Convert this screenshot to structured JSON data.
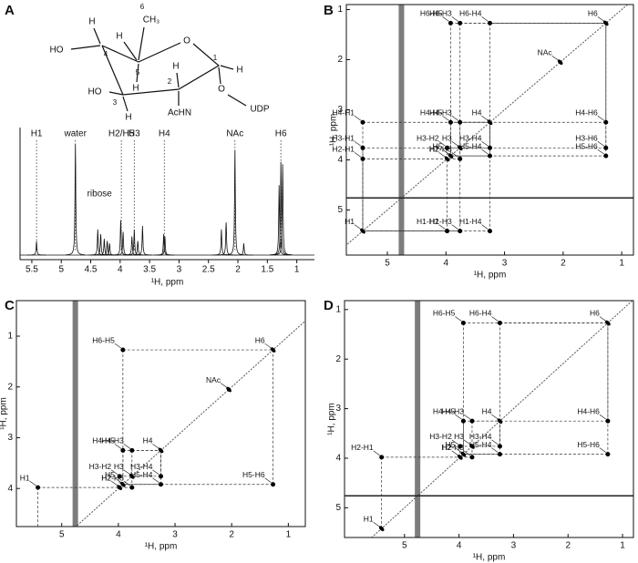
{
  "structure": {
    "atoms": [
      "H",
      "HO",
      "H",
      "HO",
      "H",
      "CH₃",
      "H",
      "AcHN",
      "H",
      "O",
      "O",
      "UDP",
      "H"
    ],
    "numbers": [
      "1",
      "2",
      "3",
      "4",
      "5",
      "6"
    ]
  },
  "chart_data": [
    {
      "type": "spectrum",
      "panel": "A",
      "xlabel": "¹H, ppm",
      "xlim": [
        5.7,
        0.7
      ],
      "xticks": [
        5.5,
        5,
        4.5,
        4,
        3.5,
        3,
        2.5,
        2,
        1.5,
        1
      ],
      "ylim": [
        0,
        100
      ],
      "x": [
        5.42,
        4.76,
        4.38,
        4.33,
        4.27,
        4.22,
        4.18,
        3.99,
        3.95,
        3.8,
        3.76,
        3.7,
        3.62,
        3.26,
        3.24,
        2.28,
        2.2,
        2.05,
        1.9,
        1.3,
        1.27,
        1.24
      ],
      "values": [
        12,
        95,
        22,
        18,
        14,
        12,
        10,
        30,
        20,
        16,
        22,
        12,
        25,
        18,
        16,
        22,
        28,
        90,
        10,
        60,
        80,
        78
      ],
      "annotations": [
        {
          "label": "H1",
          "x": 5.42,
          "dotted": true
        },
        {
          "label": "water",
          "x": 4.76,
          "dotted": true
        },
        {
          "label": "ribose",
          "x": 4.35,
          "dotted": false
        },
        {
          "label": "H2/H5",
          "x": 3.98,
          "dotted": true
        },
        {
          "label": "H3",
          "x": 3.76,
          "dotted": true
        },
        {
          "label": "H4",
          "x": 3.25,
          "dotted": true
        },
        {
          "label": "NAc",
          "x": 2.05,
          "dotted": true
        },
        {
          "label": "H6",
          "x": 1.27,
          "dotted": true
        }
      ]
    },
    {
      "type": "2d",
      "panel": "B",
      "xlabel": "¹H, ppm",
      "ylabel": "¹H, ppm",
      "xlim": [
        5.7,
        0.8
      ],
      "ylim": [
        0.9,
        5.9
      ],
      "xticks": [
        5,
        4,
        3,
        2,
        1
      ],
      "yticks": [
        1,
        2,
        3,
        4,
        5
      ],
      "water_ppm": 4.76,
      "peaks": [
        {
          "label": "H1",
          "x": 5.42,
          "y": 5.42
        },
        {
          "label": "H2",
          "x": 3.98,
          "y": 3.98
        },
        {
          "label": "H3",
          "x": 3.76,
          "y": 3.76
        },
        {
          "label": "H4",
          "x": 3.25,
          "y": 3.25
        },
        {
          "label": "H5",
          "x": 3.92,
          "y": 3.92
        },
        {
          "label": "H6",
          "x": 1.27,
          "y": 1.27
        },
        {
          "label": "NAc",
          "x": 2.05,
          "y": 2.05
        },
        {
          "label": "H6-H5",
          "x": 3.92,
          "y": 1.27
        },
        {
          "label": "H6-H3",
          "x": 3.76,
          "y": 1.27
        },
        {
          "label": "H6-H4",
          "x": 3.25,
          "y": 1.27
        },
        {
          "label": "H4-H1",
          "x": 5.42,
          "y": 3.25
        },
        {
          "label": "H3-H1",
          "x": 5.42,
          "y": 3.76
        },
        {
          "label": "H2-H1",
          "x": 5.42,
          "y": 3.98
        },
        {
          "label": "H4-H3",
          "x": 3.76,
          "y": 3.25
        },
        {
          "label": "H4-H5",
          "x": 3.92,
          "y": 3.25
        },
        {
          "label": "H3-H2",
          "x": 3.98,
          "y": 3.76
        },
        {
          "label": "H2-H3",
          "x": 3.76,
          "y": 3.98
        },
        {
          "label": "H5-H4",
          "x": 3.25,
          "y": 3.92
        },
        {
          "label": "H3-H4",
          "x": 3.25,
          "y": 3.76
        },
        {
          "label": "H4-H6",
          "x": 1.27,
          "y": 3.25
        },
        {
          "label": "H3-H6",
          "x": 1.27,
          "y": 3.76
        },
        {
          "label": "H5-H6",
          "x": 1.27,
          "y": 3.92
        },
        {
          "label": "H1-H2",
          "x": 3.98,
          "y": 5.42
        },
        {
          "label": "H1-H3",
          "x": 3.76,
          "y": 5.42
        },
        {
          "label": "H1-H4",
          "x": 3.25,
          "y": 5.42
        }
      ]
    },
    {
      "type": "2d",
      "panel": "C",
      "xlabel": "¹H, ppm",
      "ylabel": "¹H, ppm",
      "xlim": [
        5.8,
        0.7
      ],
      "ylim": [
        0.3,
        4.75
      ],
      "xticks": [
        5,
        4,
        3,
        2,
        1
      ],
      "yticks": [
        1,
        2,
        3,
        4
      ],
      "water_ppm": 4.76,
      "peaks": [
        {
          "label": "H6",
          "x": 1.27,
          "y": 1.27
        },
        {
          "label": "NAc",
          "x": 2.05,
          "y": 2.05
        },
        {
          "label": "H4",
          "x": 3.25,
          "y": 3.25
        },
        {
          "label": "H3",
          "x": 3.76,
          "y": 3.76
        },
        {
          "label": "H5",
          "x": 3.92,
          "y": 3.92
        },
        {
          "label": "H2",
          "x": 3.98,
          "y": 3.98
        },
        {
          "label": "H1",
          "x": 5.42,
          "y": 3.98
        },
        {
          "label": "H6-H5",
          "x": 3.92,
          "y": 1.27
        },
        {
          "label": "H4-H5",
          "x": 3.92,
          "y": 3.25
        },
        {
          "label": "H4-H3",
          "x": 3.76,
          "y": 3.25
        },
        {
          "label": "H3-H2",
          "x": 3.98,
          "y": 3.76
        },
        {
          "label": "H3-H4",
          "x": 3.25,
          "y": 3.76
        },
        {
          "label": "H2-H3",
          "x": 3.76,
          "y": 3.98
        },
        {
          "label": "H5-H4",
          "x": 3.25,
          "y": 3.92
        },
        {
          "label": "H5-H6",
          "x": 1.27,
          "y": 3.92
        }
      ]
    },
    {
      "type": "2d",
      "panel": "D",
      "xlabel": "¹H, ppm",
      "ylabel": "¹H, ppm",
      "xlim": [
        6.1,
        0.8
      ],
      "ylim": [
        0.82,
        5.6
      ],
      "xticks": [
        5,
        4,
        3,
        2,
        1
      ],
      "yticks": [
        1,
        2,
        3,
        4,
        5
      ],
      "water_ppm": 4.76,
      "peaks": [
        {
          "label": "H6",
          "x": 1.27,
          "y": 1.27
        },
        {
          "label": "H4",
          "x": 3.25,
          "y": 3.25
        },
        {
          "label": "H3",
          "x": 3.76,
          "y": 3.76
        },
        {
          "label": "H5",
          "x": 3.92,
          "y": 3.92
        },
        {
          "label": "H2",
          "x": 3.98,
          "y": 3.98
        },
        {
          "label": "H1",
          "x": 5.42,
          "y": 5.42
        },
        {
          "label": "H6-H5",
          "x": 3.92,
          "y": 1.27
        },
        {
          "label": "H6-H4",
          "x": 3.25,
          "y": 1.27
        },
        {
          "label": "H4-H6",
          "x": 1.27,
          "y": 3.25
        },
        {
          "label": "H4-H5",
          "x": 3.92,
          "y": 3.25
        },
        {
          "label": "H4-H3",
          "x": 3.76,
          "y": 3.25
        },
        {
          "label": "H3-H2",
          "x": 3.98,
          "y": 3.76
        },
        {
          "label": "H3-H4",
          "x": 3.25,
          "y": 3.76
        },
        {
          "label": "H5-H4",
          "x": 3.25,
          "y": 3.92
        },
        {
          "label": "H5-H6",
          "x": 1.27,
          "y": 3.92
        },
        {
          "label": "H2-H3",
          "x": 3.76,
          "y": 3.98
        },
        {
          "label": "H2-H1",
          "x": 5.42,
          "y": 3.98
        }
      ]
    }
  ]
}
